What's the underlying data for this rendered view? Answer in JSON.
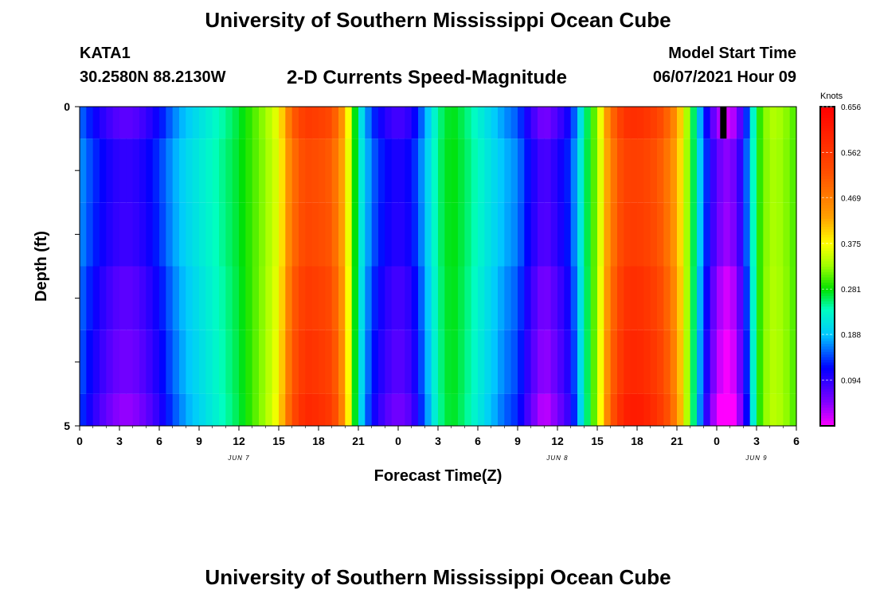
{
  "page": {
    "title_top": "University of Southern Mississippi Ocean Cube",
    "title_bottom": "University of Southern Mississippi Ocean Cube",
    "station_id": "KATA1",
    "coords": "30.2580N  88.2130W",
    "chart_subtitle": "2-D Currents Speed-Magnitude",
    "model_start_label": "Model Start Time",
    "model_start_value": "06/07/2021 Hour 09"
  },
  "chart_data": {
    "type": "heatmap",
    "title": "2-D Currents Speed-Magnitude",
    "xlabel": "Forecast Time(Z)",
    "ylabel": "Depth (ft)",
    "x_range_hours": [
      0,
      54
    ],
    "y_range_ft": [
      0,
      5
    ],
    "x_ticks": [
      {
        "hour": 0,
        "label": "0"
      },
      {
        "hour": 3,
        "label": "3"
      },
      {
        "hour": 6,
        "label": "6"
      },
      {
        "hour": 9,
        "label": "9"
      },
      {
        "hour": 12,
        "label": "12"
      },
      {
        "hour": 15,
        "label": "15"
      },
      {
        "hour": 18,
        "label": "18"
      },
      {
        "hour": 21,
        "label": "21"
      },
      {
        "hour": 24,
        "label": "0"
      },
      {
        "hour": 27,
        "label": "3"
      },
      {
        "hour": 30,
        "label": "6"
      },
      {
        "hour": 33,
        "label": "9"
      },
      {
        "hour": 36,
        "label": "12"
      },
      {
        "hour": 39,
        "label": "15"
      },
      {
        "hour": 42,
        "label": "18"
      },
      {
        "hour": 45,
        "label": "21"
      },
      {
        "hour": 48,
        "label": "0"
      },
      {
        "hour": 51,
        "label": "3"
      },
      {
        "hour": 54,
        "label": "6"
      }
    ],
    "date_labels": [
      {
        "hour": 12,
        "label": "JUN 7"
      },
      {
        "hour": 36,
        "label": "JUN 8"
      },
      {
        "hour": 51,
        "label": "JUN 9"
      }
    ],
    "y_ticks": [
      {
        "value": 0,
        "label": "0"
      },
      {
        "value": 1,
        "label": ""
      },
      {
        "value": 2,
        "label": ""
      },
      {
        "value": 3,
        "label": ""
      },
      {
        "value": 4,
        "label": ""
      },
      {
        "value": 5,
        "label": "5"
      }
    ],
    "colorbar": {
      "unit": "Knots",
      "min": 0.0,
      "max": 0.656,
      "ticks": [
        "0.656",
        "0.562",
        "0.469",
        "0.375",
        "0.281",
        "0.188",
        "0.094"
      ],
      "tick_values": [
        0.656,
        0.562,
        0.469,
        0.375,
        0.281,
        0.188,
        0.094
      ],
      "stops": [
        {
          "v": 0.0,
          "color": "#ff00ff"
        },
        {
          "v": 0.05,
          "color": "#8000ff"
        },
        {
          "v": 0.12,
          "color": "#0000ff"
        },
        {
          "v": 0.188,
          "color": "#00c8ff"
        },
        {
          "v": 0.24,
          "color": "#00ffc0"
        },
        {
          "v": 0.281,
          "color": "#00e000"
        },
        {
          "v": 0.33,
          "color": "#a0ff00"
        },
        {
          "v": 0.375,
          "color": "#ffff00"
        },
        {
          "v": 0.43,
          "color": "#ffa000"
        },
        {
          "v": 0.52,
          "color": "#ff5000"
        },
        {
          "v": 0.656,
          "color": "#ff0000"
        }
      ]
    },
    "depth_layers_ft": [
      [
        0.0,
        0.5
      ],
      [
        0.5,
        1.5
      ],
      [
        1.5,
        2.5
      ],
      [
        2.5,
        3.5
      ],
      [
        3.5,
        4.5
      ],
      [
        4.5,
        5.0
      ]
    ],
    "series": [
      {
        "name": "surface-profile (knots at 0.5 h steps)",
        "time_hours": [
          0,
          1,
          2,
          3,
          4,
          5,
          6,
          7,
          8,
          9,
          10,
          11,
          12,
          13,
          14,
          15,
          16,
          17,
          18,
          19,
          20,
          21,
          22,
          23,
          24,
          25,
          26,
          27,
          28,
          29,
          30,
          31,
          32,
          33,
          34,
          35,
          36,
          37,
          38,
          39,
          40,
          41,
          42,
          43,
          44,
          45,
          46,
          47,
          48,
          49,
          50,
          51,
          52,
          53,
          54
        ],
        "speed_knots": [
          0.16,
          0.12,
          0.09,
          0.07,
          0.07,
          0.09,
          0.12,
          0.16,
          0.19,
          0.21,
          0.23,
          0.25,
          0.27,
          0.3,
          0.33,
          0.37,
          0.5,
          0.56,
          0.55,
          0.53,
          0.42,
          0.23,
          0.14,
          0.1,
          0.08,
          0.1,
          0.17,
          0.25,
          0.28,
          0.26,
          0.23,
          0.2,
          0.17,
          0.15,
          0.09,
          0.05,
          0.08,
          0.12,
          0.24,
          0.33,
          0.48,
          0.57,
          0.58,
          0.56,
          0.52,
          0.44,
          0.3,
          0.14,
          0.04,
          0.01,
          0.09,
          0.28,
          0.34,
          0.33,
          0.3
        ]
      }
    ],
    "depth_factor": [
      1.0,
      0.9,
      0.92,
      1.0,
      1.05,
      1.12
    ],
    "marker": {
      "hour": 48.5,
      "depth_ft": [
        0,
        0.5
      ],
      "color": "#000000"
    }
  }
}
